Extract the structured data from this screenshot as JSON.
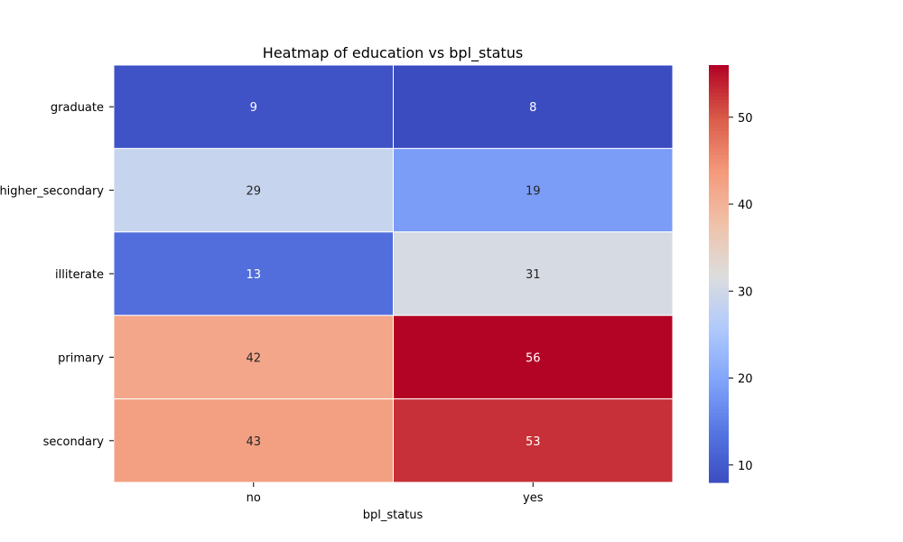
{
  "chart_data": {
    "type": "heatmap",
    "title": "Heatmap of education vs bpl_status",
    "xlabel": "bpl_status",
    "ylabel": "",
    "x_categories": [
      "no",
      "yes"
    ],
    "y_categories": [
      "graduate",
      "higher_secondary",
      "illiterate",
      "primary",
      "secondary"
    ],
    "values": [
      [
        9,
        8
      ],
      [
        29,
        19
      ],
      [
        13,
        31
      ],
      [
        42,
        56
      ],
      [
        43,
        53
      ]
    ],
    "colormap": "coolwarm",
    "color_range": [
      8,
      56
    ],
    "colorbar_ticks": [
      10,
      20,
      30,
      40,
      50
    ],
    "annotated": true,
    "grid": false
  }
}
